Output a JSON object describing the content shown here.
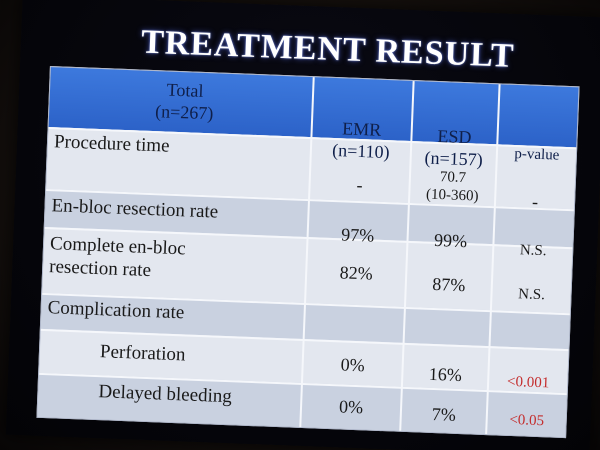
{
  "slide": {
    "title": "TREATMENT RESULT"
  },
  "table": {
    "header": {
      "total_label": "Total",
      "total_n": "(n=267)",
      "emr_label": "EMR",
      "emr_n": "(n=110)",
      "esd_label": "ESD",
      "esd_n": "(n=157)",
      "pvalue_label": "p-value"
    },
    "rows": [
      {
        "label": "Procedure time",
        "emr": "-",
        "esd_line1": "70.7",
        "esd_line2": "(10-360)",
        "p": "-"
      },
      {
        "label": "En-bloc resection rate",
        "emr": "97%",
        "esd": "99%",
        "p": "N.S."
      },
      {
        "label_line1": "Complete en-bloc",
        "label_line2": "resection rate",
        "emr": "82%",
        "esd": "87%",
        "p": "N.S."
      },
      {
        "label": "Complication rate"
      },
      {
        "label": "Perforation",
        "emr": "0%",
        "esd": "16%",
        "p": "<0.001"
      },
      {
        "label": "Delayed bleeding",
        "emr": "0%",
        "esd": "7%",
        "p": "<0.05"
      }
    ]
  },
  "colors": {
    "header_blue": "#2c62c8",
    "significant_red": "#c42d2d",
    "title_white": "#ffffff"
  }
}
